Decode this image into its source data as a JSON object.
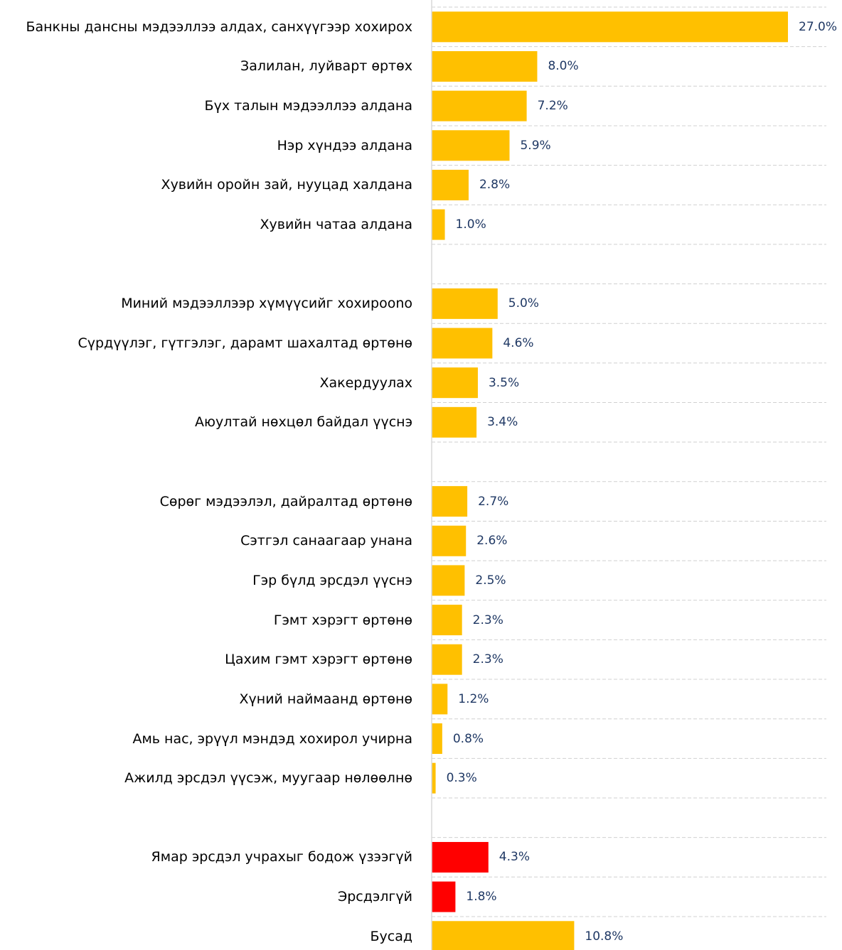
{
  "chart_data": {
    "type": "bar",
    "orientation": "horizontal",
    "categories": [
      "Банкны дансны мэдээллээ алдах, санхүүгээр хохирох",
      "Залилан, луйварт өртөх",
      "Бүх талын мэдээллээ алдана",
      "Нэр хүндээ алдана",
      "Хувийн оройн зай, нууцад халдана",
      "Хувийн чатаа алдана",
      null,
      "Миний мэдээллээр хүмүүсийг хохироono",
      "Сүрдүүлэг, гүтгэлэг,  дарамт шахалтад өртөнө",
      "Хакердуулах",
      "Аюултай нөхцөл байдал үүснэ",
      null,
      "Сөрөг мэдээлэл, дайралтад өртөнө",
      "Сэтгэл санаагаар унана",
      "Гэр бүлд эрсдэл үүснэ",
      "Гэмт хэрэгт өртөнө",
      "Цахим гэмт хэрэгт өртөнө",
      "Хүний наймаанд өртөнө",
      "Амь нас, эрүүл мэндэд хохирол учирна",
      "Ажилд эрсдэл үүсэж, муугаар нөлөөлнө",
      null,
      "Ямар эрсдэл учрахыг бодож үзээгүй",
      "Эрсдэлгүй",
      "Бусад"
    ],
    "values": [
      27.0,
      8.0,
      7.2,
      5.9,
      2.8,
      1.0,
      null,
      5.0,
      4.6,
      3.5,
      3.4,
      null,
      2.7,
      2.6,
      2.5,
      2.3,
      2.3,
      1.2,
      0.8,
      0.3,
      null,
      4.3,
      1.8,
      10.8
    ],
    "value_labels": [
      "27.0%",
      "8.0%",
      "7.2%",
      "5.9%",
      "2.8%",
      "1.0%",
      null,
      "5.0%",
      "4.6%",
      "3.5%",
      "3.4%",
      null,
      "2.7%",
      "2.6%",
      "2.5%",
      "2.3%",
      "2.3%",
      "1.2%",
      "0.8%",
      "0.3%",
      null,
      "4.3%",
      "1.8%",
      "10.8%"
    ],
    "colors": [
      "#ffc000",
      "#ffc000",
      "#ffc000",
      "#ffc000",
      "#ffc000",
      "#ffc000",
      null,
      "#ffc000",
      "#ffc000",
      "#ffc000",
      "#ffc000",
      null,
      "#ffc000",
      "#ffc000",
      "#ffc000",
      "#ffc000",
      "#ffc000",
      "#ffc000",
      "#ffc000",
      "#ffc000",
      null,
      "#ff0000",
      "#ff0000",
      "#ffc000"
    ],
    "xlim": [
      0,
      27
    ]
  }
}
